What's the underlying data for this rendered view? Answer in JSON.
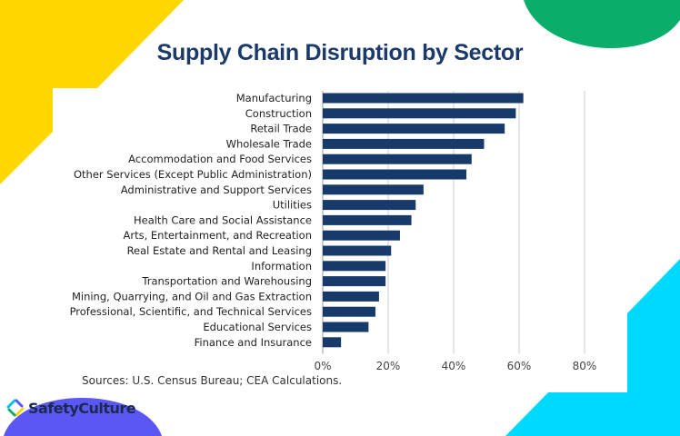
{
  "brand": {
    "name": "SafetyCulture"
  },
  "colors": {
    "bar": "#173a6b",
    "grid": "#dddddd",
    "title": "#1b3a6b",
    "yellow": "#ffd600",
    "green": "#0aae6a",
    "cyan": "#00d9ff",
    "purple": "#5b57f5"
  },
  "source": "Sources: U.S. Census Bureau; CEA Calculations.",
  "chart_data": {
    "type": "bar",
    "orientation": "horizontal",
    "title": "Supply Chain Disruption by Sector",
    "xlabel": "",
    "ylabel": "",
    "xlim": [
      0,
      80
    ],
    "x_ticks": [
      "0%",
      "20%",
      "40%",
      "60%",
      "80%"
    ],
    "grid": true,
    "categories": [
      "Manufacturing",
      "Construction",
      "Retail Trade",
      "Wholesale Trade",
      "Accommodation and Food Services",
      "Other Services (Except Public Administration)",
      "Administrative and Support Services",
      "Utilities",
      "Health Care and Social Assistance",
      "Arts, Entertainment, and Recreation",
      "Real Estate and Rental and Leasing",
      "Information",
      "Transportation and Warehousing",
      "Mining, Quarrying, and Oil and Gas Extraction",
      "Professional, Scientific, and Technical Services",
      "Educational Services",
      "Finance and Insurance"
    ],
    "values": [
      61.3,
      59.0,
      55.6,
      49.3,
      45.5,
      43.9,
      30.8,
      28.4,
      27.1,
      23.6,
      20.9,
      19.2,
      19.2,
      17.2,
      16.1,
      14.0,
      5.6
    ]
  }
}
